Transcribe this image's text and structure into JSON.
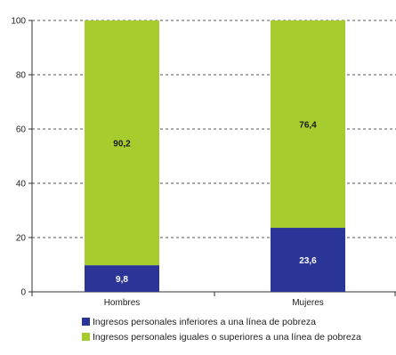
{
  "chart_data": {
    "type": "bar",
    "stacked": true,
    "categories": [
      "Hombres",
      "Mujeres"
    ],
    "series": [
      {
        "name": "Ingresos personales inferiores a una línea de pobreza",
        "values": [
          9.8,
          23.6
        ],
        "labels": [
          "9,8",
          "23,6"
        ],
        "color": "#2a3597",
        "label_color": "#ffffff"
      },
      {
        "name": "Ingresos personales iguales o superiores a una línea de pobreza",
        "values": [
          90.2,
          76.4
        ],
        "labels": [
          "90,2",
          "76,4"
        ],
        "color": "#a6cc2e",
        "label_color": "#1a1a1a"
      }
    ],
    "ylim": [
      0,
      100
    ],
    "yticks": [
      0,
      20,
      40,
      60,
      80,
      100
    ],
    "ytick_labels": [
      "0",
      "20",
      "40",
      "60",
      "80",
      "100"
    ],
    "grid": "horizontal-dashed",
    "legend_position": "bottom",
    "title": "",
    "xlabel": "",
    "ylabel": ""
  }
}
